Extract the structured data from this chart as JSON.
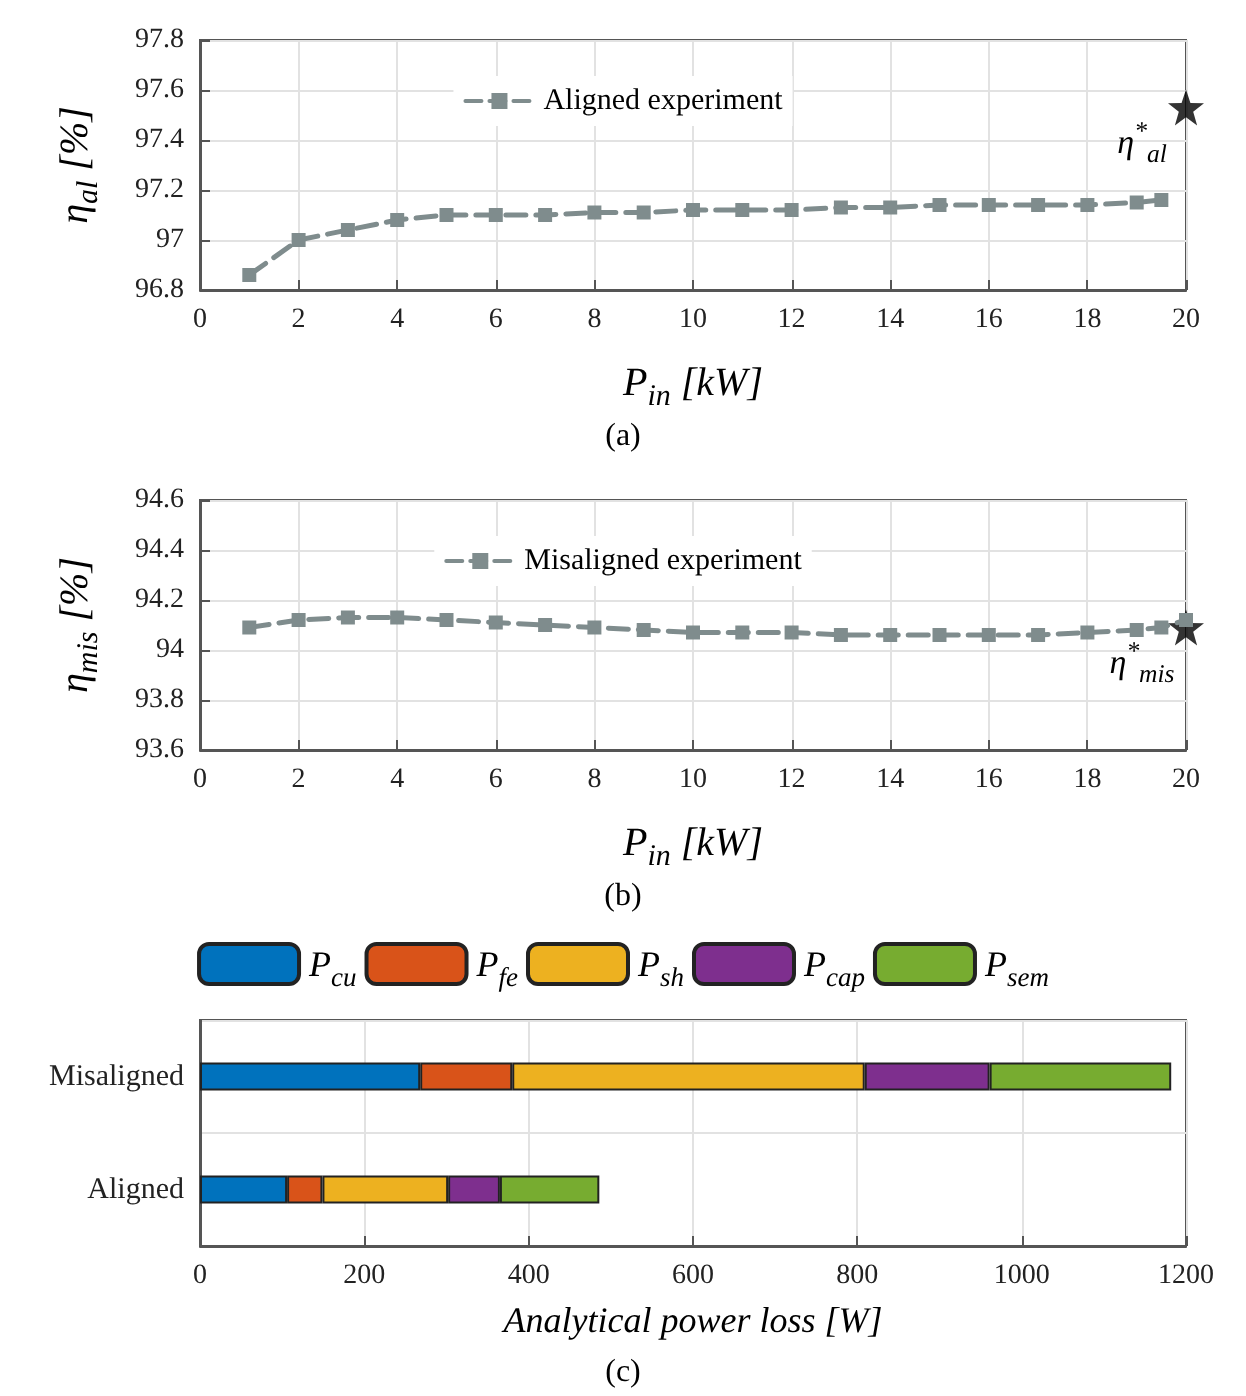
{
  "chart_data": [
    {
      "type": "line",
      "xlabel": "P$_{in}$ [kW]",
      "ylabel": "η$_{al}$ [%]",
      "xlim": [
        0,
        20
      ],
      "xticks": [
        0,
        2,
        4,
        6,
        8,
        10,
        12,
        14,
        16,
        18,
        20
      ],
      "ylim": [
        96.8,
        97.8
      ],
      "yticks": [
        96.8,
        97,
        97.2,
        97.4,
        97.6,
        97.8
      ],
      "grid": true,
      "legend": "top",
      "marker": "square",
      "line_style": "dashed",
      "annotations": [
        {
          "text": "η$^{*}$$_{al}$",
          "x": 20,
          "y": 97.53
        },
        "(a)"
      ],
      "series": [
        {
          "name": "Aligned experiment",
          "color": "#7f8c8d",
          "x": [
            1,
            2,
            3,
            4,
            5,
            6,
            7,
            8,
            9,
            10,
            11,
            12,
            13,
            14,
            15,
            16,
            17,
            18,
            19,
            19.5
          ],
          "values": [
            96.86,
            97.0,
            97.04,
            97.08,
            97.1,
            97.1,
            97.1,
            97.11,
            97.11,
            97.12,
            97.12,
            97.12,
            97.13,
            97.13,
            97.14,
            97.14,
            97.14,
            97.14,
            97.15,
            97.16
          ]
        },
        {
          "type": "scatter",
          "marker": "star",
          "color": "#000000",
          "x": [
            20
          ],
          "values": [
            97.53
          ]
        }
      ]
    },
    {
      "type": "line",
      "xlabel": "P$_{in}$ [kW]",
      "ylabel": "η$_{mis}$ [%]",
      "xlim": [
        0,
        20
      ],
      "xticks": [
        0,
        2,
        4,
        6,
        8,
        10,
        12,
        14,
        16,
        18,
        20
      ],
      "ylim": [
        93.6,
        94.6
      ],
      "yticks": [
        93.6,
        93.8,
        94,
        94.2,
        94.4,
        94.6
      ],
      "grid": true,
      "legend": "top",
      "marker": "square",
      "line_style": "dashed",
      "annotations": [
        {
          "text": "η$^{*}$$_{mis}$",
          "x": 20,
          "y": 94.09
        },
        "(b)"
      ],
      "series": [
        {
          "name": "Misaligned experiment",
          "color": "#7f8c8d",
          "x": [
            1,
            2,
            3,
            4,
            5,
            6,
            7,
            8,
            9,
            10,
            11,
            12,
            13,
            14,
            15,
            16,
            17,
            18,
            19,
            19.5,
            20
          ],
          "values": [
            94.09,
            94.12,
            94.13,
            94.13,
            94.12,
            94.11,
            94.1,
            94.09,
            94.08,
            94.07,
            94.07,
            94.07,
            94.06,
            94.06,
            94.06,
            94.06,
            94.06,
            94.07,
            94.08,
            94.09,
            94.12
          ]
        },
        {
          "type": "scatter",
          "marker": "star",
          "color": "#000000",
          "x": [
            20
          ],
          "values": [
            94.09
          ]
        }
      ]
    },
    {
      "type": "bar",
      "orientation": "horizontal",
      "stacked": true,
      "xlabel": "Analytical power loss [W]",
      "categories": [
        "Misaligned",
        "Aligned"
      ],
      "xlim": [
        0,
        1200
      ],
      "xticks": [
        0,
        200,
        400,
        600,
        800,
        1000,
        1200
      ],
      "grid": true,
      "legend": "top",
      "annotations": [
        "(c)"
      ],
      "series": [
        {
          "name": "P$_{cu}$",
          "color": "#0072bd",
          "values": [
            268,
            106
          ]
        },
        {
          "name": "P$_{fe}$",
          "color": "#d95319",
          "values": [
            112,
            43
          ]
        },
        {
          "name": "P$_{sh}$",
          "color": "#edb120",
          "values": [
            429,
            153
          ]
        },
        {
          "name": "P$_{cap}$",
          "color": "#7e2f8e",
          "values": [
            152,
            63
          ]
        },
        {
          "name": "P$_{sem}$",
          "color": "#77ac30",
          "values": [
            221,
            121
          ]
        }
      ]
    }
  ]
}
